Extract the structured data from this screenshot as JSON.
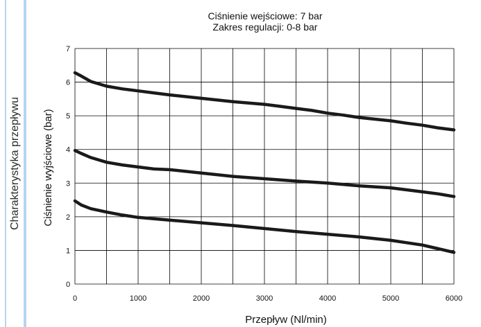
{
  "side_title": "Charakterystyka przepływu",
  "colors": {
    "frame_blue": "#6FA8DC",
    "curve": "#1a1a1a",
    "grid": "#000000"
  },
  "chart_data": {
    "type": "line",
    "title": "Ciśnienie wejściowe: 7 bar",
    "subtitle": "Zakres regulacji: 0-8 bar",
    "xlabel": "Przepływ (Nl/min)",
    "ylabel": "Ciśnienie wyjściowe (bar)",
    "xlim": [
      0,
      6000
    ],
    "ylim": [
      0,
      7
    ],
    "xticks": [
      0,
      1000,
      2000,
      3000,
      4000,
      5000,
      6000
    ],
    "yticks": [
      0,
      1,
      2,
      3,
      4,
      5,
      6,
      7
    ],
    "x_minor_step": 500,
    "grid": true,
    "series": [
      {
        "x": [
          0,
          100,
          250,
          500,
          750,
          1000,
          1250,
          1500,
          2000,
          2500,
          3000,
          3250,
          3500,
          3750,
          4000,
          4250,
          4500,
          4750,
          5000,
          5250,
          5500,
          5750,
          6000
        ],
        "y": [
          6.28,
          6.18,
          6.02,
          5.88,
          5.8,
          5.74,
          5.68,
          5.62,
          5.52,
          5.42,
          5.34,
          5.28,
          5.22,
          5.16,
          5.08,
          5.02,
          4.95,
          4.9,
          4.85,
          4.78,
          4.72,
          4.64,
          4.58
        ]
      },
      {
        "x": [
          0,
          100,
          250,
          500,
          750,
          1000,
          1250,
          1500,
          2000,
          2500,
          3000,
          3500,
          4000,
          4500,
          5000,
          5250,
          5500,
          5750,
          6000
        ],
        "y": [
          3.97,
          3.88,
          3.76,
          3.62,
          3.54,
          3.48,
          3.42,
          3.4,
          3.3,
          3.2,
          3.13,
          3.06,
          3.0,
          2.92,
          2.86,
          2.8,
          2.74,
          2.68,
          2.6
        ]
      },
      {
        "x": [
          0,
          100,
          250,
          500,
          750,
          1000,
          1250,
          1500,
          2000,
          2500,
          3000,
          3500,
          4000,
          4500,
          5000,
          5250,
          5500,
          5750,
          6000
        ],
        "y": [
          2.47,
          2.35,
          2.24,
          2.14,
          2.05,
          1.98,
          1.94,
          1.9,
          1.82,
          1.74,
          1.65,
          1.56,
          1.48,
          1.4,
          1.3,
          1.23,
          1.16,
          1.05,
          0.94
        ]
      }
    ]
  }
}
